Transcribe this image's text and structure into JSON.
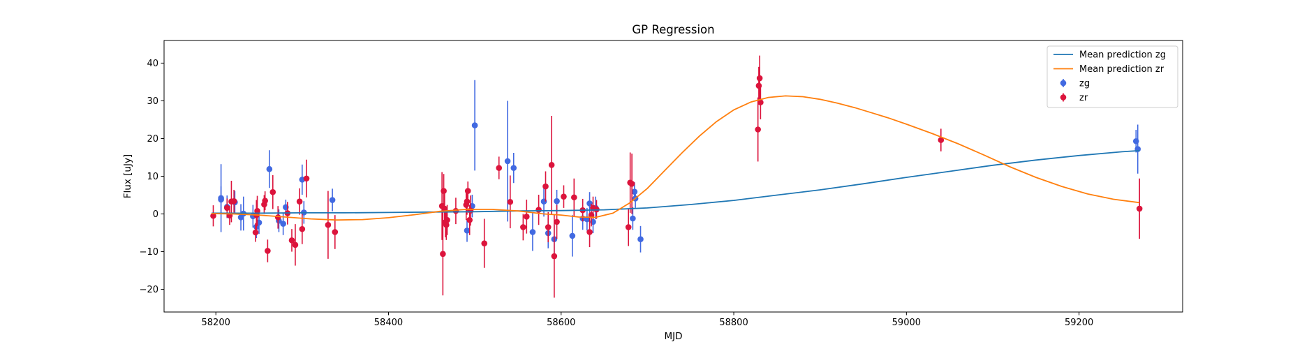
{
  "chart_data": {
    "type": "scatter",
    "title": "GP Regression",
    "xlabel": "MJD",
    "ylabel": "Flux [uJy]",
    "xlim": [
      58140,
      59320
    ],
    "ylim": [
      -26,
      46
    ],
    "xticks": [
      58200,
      58400,
      58600,
      58800,
      59000,
      59200
    ],
    "yticks": [
      -20,
      -10,
      0,
      10,
      20,
      30,
      40
    ],
    "grid": false,
    "legend_position": "top-right",
    "legend": [
      {
        "label": "Mean prediction zg",
        "kind": "line",
        "color": "#1f77b4"
      },
      {
        "label": "Mean prediction zr",
        "kind": "line",
        "color": "#ff7f0e"
      },
      {
        "label": "zg",
        "kind": "errorbar",
        "color": "#4169e1"
      },
      {
        "label": "zr",
        "kind": "errorbar",
        "color": "#dc143c"
      }
    ],
    "lines": [
      {
        "name": "Mean prediction zg",
        "color": "#1f77b4",
        "x": [
          58195,
          58250,
          58300,
          58350,
          58400,
          58450,
          58500,
          58550,
          58600,
          58650,
          58700,
          58750,
          58800,
          58850,
          58900,
          58950,
          59000,
          59050,
          59100,
          59150,
          59200,
          59250,
          59270
        ],
        "y": [
          0.2,
          0.2,
          0.3,
          0.3,
          0.4,
          0.5,
          0.6,
          0.8,
          0.9,
          1.1,
          1.6,
          2.5,
          3.6,
          5.0,
          6.4,
          8.0,
          9.7,
          11.3,
          12.9,
          14.3,
          15.5,
          16.5,
          16.8
        ]
      },
      {
        "name": "Mean prediction zr",
        "color": "#ff7f0e",
        "x": [
          58195,
          58220,
          58250,
          58280,
          58310,
          58340,
          58370,
          58400,
          58430,
          58460,
          58490,
          58520,
          58550,
          58580,
          58600,
          58620,
          58640,
          58660,
          58680,
          58700,
          58720,
          58740,
          58760,
          58780,
          58800,
          58820,
          58840,
          58860,
          58880,
          58900,
          58920,
          58940,
          58960,
          58980,
          59000,
          59030,
          59060,
          59090,
          59120,
          59150,
          59180,
          59210,
          59240,
          59270
        ],
        "y": [
          0.1,
          0.0,
          -0.3,
          -0.8,
          -1.3,
          -1.6,
          -1.5,
          -1.0,
          -0.2,
          0.7,
          1.2,
          1.2,
          0.8,
          0.0,
          -0.3,
          -0.8,
          -0.9,
          0.2,
          3.0,
          6.8,
          11.5,
          16.2,
          20.6,
          24.5,
          27.6,
          29.7,
          30.9,
          31.3,
          31.1,
          30.4,
          29.4,
          28.2,
          26.8,
          25.4,
          23.8,
          21.3,
          18.6,
          15.6,
          12.5,
          9.7,
          7.3,
          5.3,
          3.9,
          3.0
        ]
      }
    ],
    "series": [
      {
        "name": "zg",
        "color": "#4169e1",
        "x": [
          58206,
          58206,
          58213,
          58222,
          58229,
          58232,
          58243,
          58247,
          58250,
          58262,
          58273,
          58278,
          58281,
          58300,
          58302,
          58335,
          58491,
          58497,
          58500,
          58538,
          58545,
          58567,
          58580,
          58585,
          58592,
          58595,
          58613,
          58625,
          58630,
          58633,
          58637,
          58640,
          58683,
          58685,
          58686,
          58692,
          59266,
          59268
        ],
        "y": [
          4.2,
          3.8,
          1.9,
          3.1,
          -0.9,
          0.1,
          -0.6,
          -3.4,
          -2.3,
          11.9,
          -1.8,
          -2.6,
          1.8,
          9.1,
          0.4,
          3.7,
          -4.4,
          2.1,
          23.5,
          14.0,
          12.2,
          -4.8,
          3.3,
          -5.1,
          -6.7,
          3.4,
          -5.8,
          -1.2,
          -1.4,
          2.8,
          -2.1,
          1.6,
          -1.2,
          5.9,
          4.1,
          -6.7,
          19.3,
          17.2
        ],
        "err": [
          9.0,
          3.5,
          3.0,
          3.0,
          3.5,
          4.5,
          3.0,
          3.0,
          3.0,
          5.0,
          3.0,
          3.0,
          2.0,
          4.0,
          3.0,
          3.0,
          3.0,
          3.0,
          12.0,
          16.0,
          4.0,
          5.0,
          4.0,
          4.0,
          4.0,
          3.0,
          5.5,
          3.0,
          3.0,
          3.0,
          3.0,
          3.0,
          3.0,
          2.5,
          2.5,
          3.5,
          3.0,
          6.5
        ]
      },
      {
        "name": "zr",
        "color": "#dc143c",
        "x": [
          58197,
          58213,
          58216,
          58218,
          58221,
          58246,
          58247,
          58248,
          58256,
          58257,
          58260,
          58266,
          58272,
          58283,
          58288,
          58292,
          58297,
          58300,
          58305,
          58330,
          58338,
          58462,
          58463,
          58464,
          58465,
          58466,
          58467,
          58468,
          58478,
          58490,
          58491,
          58492,
          58494,
          58495,
          58511,
          58528,
          58541,
          58556,
          58560,
          58574,
          58582,
          58585,
          58589,
          58592,
          58595,
          58603,
          58615,
          58625,
          58633,
          58635,
          58637,
          58641,
          58678,
          58680,
          58682,
          58828,
          58829,
          58830,
          58831,
          59040,
          59270
        ],
        "y": [
          -0.5,
          1.6,
          -0.4,
          3.3,
          3.4,
          -4.9,
          -0.3,
          0.8,
          2.5,
          3.5,
          -9.8,
          5.8,
          -0.9,
          0.2,
          -7.0,
          -8.2,
          3.3,
          -4.0,
          9.4,
          -2.9,
          -4.8,
          2.1,
          -10.6,
          6.1,
          1.4,
          -2.2,
          -2.9,
          -1.6,
          0.8,
          2.4,
          3.3,
          6.1,
          -1.6,
          0.9,
          -7.8,
          12.2,
          3.2,
          -3.5,
          -0.7,
          1.1,
          7.3,
          -3.5,
          13.0,
          -11.2,
          -2.1,
          4.6,
          4.4,
          1.0,
          -4.8,
          -0.3,
          1.6,
          1.2,
          -3.5,
          8.3,
          8.0,
          22.4,
          34.0,
          36.0,
          29.6,
          19.6,
          1.4
        ],
        "err": [
          2.8,
          2.5,
          2.5,
          5.5,
          3.0,
          2.5,
          4.0,
          4.0,
          2.5,
          2.5,
          3.0,
          4.5,
          3.0,
          3.0,
          3.0,
          5.5,
          3.5,
          4.0,
          5.0,
          9.0,
          4.5,
          9.0,
          11.0,
          4.5,
          4.0,
          4.0,
          4.0,
          4.0,
          3.5,
          4.0,
          3.5,
          2.5,
          4.0,
          4.0,
          6.5,
          3.0,
          7.0,
          3.5,
          4.5,
          4.0,
          4.0,
          4.0,
          13.0,
          11.0,
          4.5,
          3.0,
          5.0,
          3.0,
          4.0,
          3.0,
          3.0,
          2.5,
          5.0,
          8.0,
          8.0,
          8.5,
          5.0,
          6.0,
          4.5,
          3.0,
          8.0
        ]
      }
    ]
  }
}
